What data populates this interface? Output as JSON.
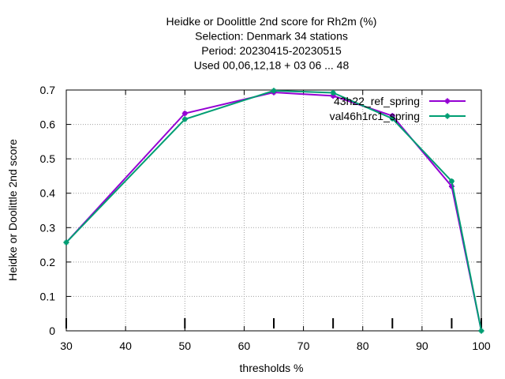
{
  "chart_data": {
    "type": "line",
    "title_lines": [
      "Heidke or Doolittle 2nd score  for Rh2m (%)",
      "Selection: Denmark     34 stations",
      "Period: 20230415-20230515",
      "Used  00,06,12,18  + 03 06 ... 48"
    ],
    "xlabel": "thresholds %",
    "ylabel": "Heidke or Doolittle 2nd score",
    "xlim": [
      30,
      100
    ],
    "ylim": [
      0,
      0.7
    ],
    "xticks": [
      30,
      40,
      50,
      60,
      70,
      80,
      90,
      100
    ],
    "yticks": [
      0,
      0.1,
      0.2,
      0.3,
      0.4,
      0.5,
      0.6,
      0.7
    ],
    "threshold_markers": [
      30,
      50,
      65,
      75,
      85,
      95,
      100
    ],
    "grid": true,
    "legend_position": "top-right",
    "series": [
      {
        "name": "43h22_ref_spring",
        "color": "#9400d3",
        "x": [
          30,
          50,
          65,
          75,
          85,
          95,
          100
        ],
        "y": [
          0.257,
          0.632,
          0.693,
          0.683,
          0.625,
          0.42,
          0.0
        ]
      },
      {
        "name": "val46h1rc1_spring",
        "color": "#009e73",
        "x": [
          30,
          50,
          65,
          75,
          85,
          95,
          100
        ],
        "y": [
          0.257,
          0.615,
          0.698,
          0.692,
          0.617,
          0.435,
          0.0
        ]
      }
    ]
  }
}
